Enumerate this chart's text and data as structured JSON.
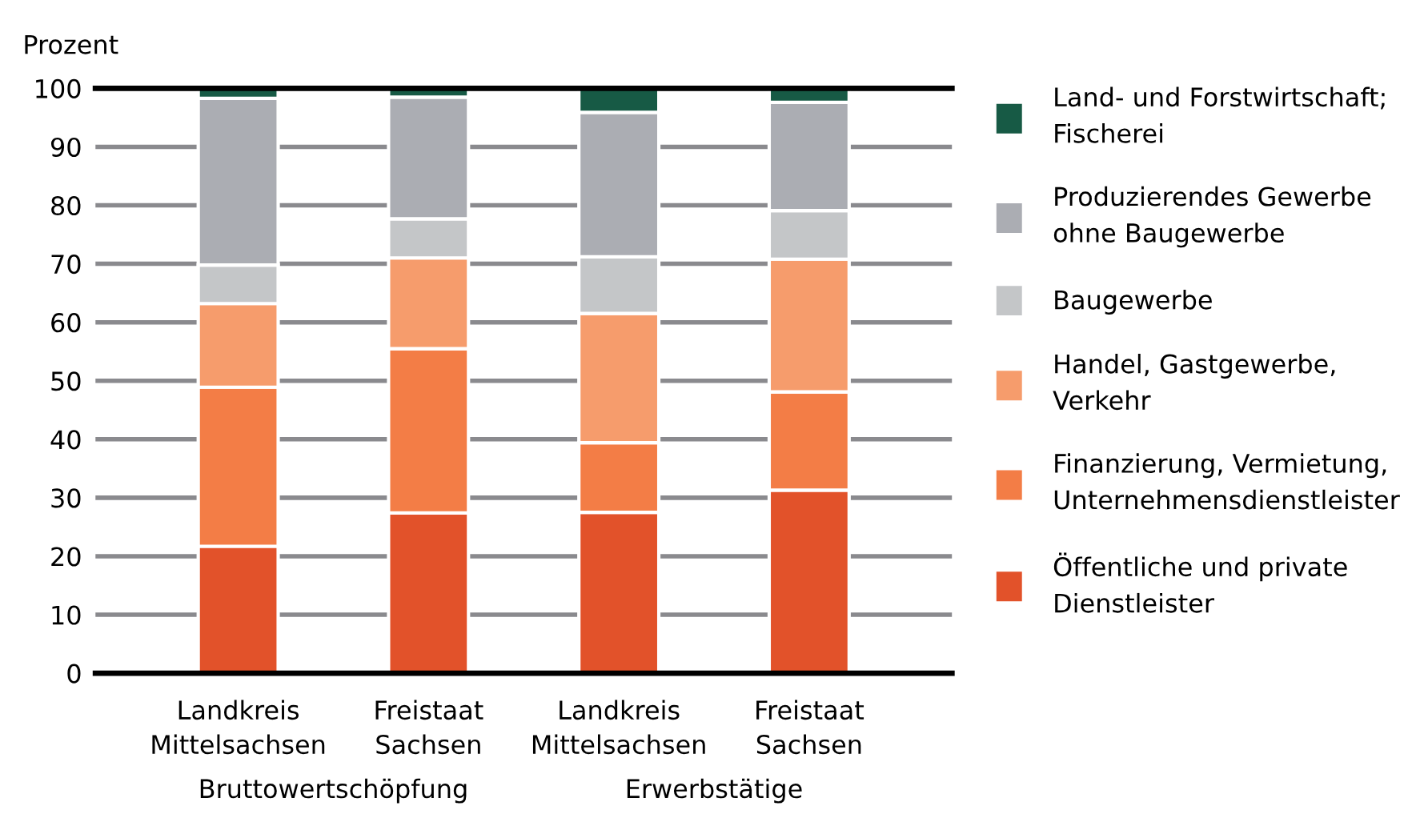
{
  "chart_data": {
    "type": "bar",
    "stacked": true,
    "ylabel": "Prozent",
    "categories": [
      "Landkreis\nMittelsachsen",
      "Freistaat\nSachsen",
      "Landkreis\nMittelsachsen",
      "Freistaat\nSachsen"
    ],
    "series": [
      {
        "name": "Öffentliche und private\nDienstleister",
        "color": "#e2522a",
        "values": [
          21.7,
          27.4,
          27.5,
          31.3
        ]
      },
      {
        "name": "Finanzierung, Vermietung,\nUnternehmensdienstleister",
        "color": "#f37d46",
        "values": [
          27.2,
          28.1,
          11.9,
          16.8
        ]
      },
      {
        "name": "Handel, Gastgewerbe,\nVerkehr",
        "color": "#f69c6c",
        "values": [
          14.3,
          15.5,
          22.1,
          22.7
        ]
      },
      {
        "name": "Baugewerbe",
        "color": "#c4c6c8",
        "values": [
          6.6,
          6.7,
          9.7,
          8.3
        ]
      },
      {
        "name": "Produzierendes Gewerbe\nohne Baugewerbe",
        "color": "#abadb3",
        "values": [
          28.5,
          20.8,
          24.7,
          18.5
        ]
      },
      {
        "name": "Land- und Forstwirtschaft;\nFischerei",
        "color": "#175a45",
        "values": [
          1.7,
          1.5,
          4.1,
          2.4
        ]
      }
    ],
    "annotations": [
      "Bruttowertschöpfung",
      "Erwerbstätige"
    ],
    "ylim": [
      0,
      100
    ],
    "yticks": [
      0,
      10,
      20,
      30,
      40,
      50,
      60,
      70,
      80,
      90,
      100
    ],
    "grid": "y",
    "legend": "right"
  }
}
